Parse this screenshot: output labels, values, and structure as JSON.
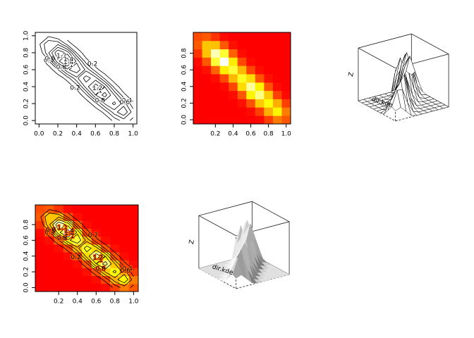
{
  "kde": {
    "x": [
      0,
      0.1,
      0.2,
      0.3,
      0.4,
      0.5,
      0.6,
      0.7,
      0.8,
      0.9,
      1
    ],
    "y": [
      0,
      0.1,
      0.2,
      0.3,
      0.4,
      0.5,
      0.6,
      0.7,
      0.8,
      0.9,
      1
    ],
    "z": [
      [
        0,
        0,
        0,
        0,
        0,
        0,
        0,
        0.04,
        0.25,
        0.5,
        0.35
      ],
      [
        0,
        0,
        0,
        0,
        0,
        0,
        0.05,
        0.26,
        0.71,
        1.0,
        0.5
      ],
      [
        0,
        0,
        0,
        0,
        0,
        0.06,
        0.33,
        0.82,
        1.05,
        0.71,
        0.25
      ],
      [
        0,
        0,
        0,
        0,
        0.05,
        0.34,
        0.99,
        1.3,
        0.82,
        0.26,
        0.04
      ],
      [
        0,
        0,
        0,
        0.04,
        0.28,
        0.89,
        1.35,
        0.99,
        0.33,
        0.05,
        0
      ],
      [
        0,
        0,
        0.05,
        0.29,
        0.75,
        1.1,
        0.89,
        0.34,
        0.06,
        0,
        0
      ],
      [
        0,
        0.06,
        0.39,
        0.96,
        1.15,
        0.75,
        0.28,
        0.05,
        0,
        0,
        0
      ],
      [
        0.04,
        0.35,
        1.14,
        1.55,
        0.96,
        0.29,
        0.04,
        0,
        0,
        0,
        0
      ],
      [
        0.2,
        0.78,
        1.4,
        1.14,
        0.39,
        0.05,
        0,
        0,
        0,
        0,
        0
      ],
      [
        0.36,
        0.8,
        0.78,
        0.35,
        0.06,
        0,
        0,
        0,
        0,
        0,
        0
      ],
      [
        0.3,
        0.36,
        0.2,
        0.04,
        0,
        0,
        0,
        0,
        0,
        0,
        0
      ]
    ],
    "levels": [
      0.2,
      0.4,
      0.6,
      0.8,
      1,
      1.2,
      1.4
    ]
  },
  "chart_data": [
    {
      "type": "contour",
      "xlim": [
        -0.04,
        1.04
      ],
      "ylim": [
        -0.04,
        1.04
      ],
      "xticks": [
        {
          "value": 0,
          "label": "0.0"
        },
        0.2,
        0.4,
        0.6,
        0.8,
        {
          "value": 1,
          "label": "1.0"
        }
      ],
      "yticks": [
        {
          "value": 0,
          "label": "0.0"
        },
        0.2,
        0.4,
        0.6,
        0.8,
        {
          "value": 1,
          "label": "1.0"
        }
      ]
    },
    {
      "type": "image",
      "contour": false,
      "palette": [
        "#ff0000",
        "#ff8000",
        "#ffff00",
        "#ffffff"
      ],
      "xlim": [
        -0.05,
        1.05
      ],
      "ylim": [
        -0.05,
        1.05
      ],
      "xticks": [
        0.2,
        0.4,
        0.6,
        0.8,
        {
          "value": 1,
          "label": "1.0"
        }
      ],
      "yticks": [
        {
          "value": 0,
          "label": "0.0"
        },
        0.2,
        0.4,
        0.6,
        0.8
      ]
    },
    {
      "type": "persp",
      "shade": false,
      "xlab": "dir.kde",
      "zlab": "Z"
    },
    {
      "type": "image",
      "contour": true,
      "palette": [
        "#ff0000",
        "#ff8000",
        "#ffff00",
        "#ffffff"
      ],
      "xlim": [
        -0.05,
        1.05
      ],
      "ylim": [
        -0.05,
        1.05
      ],
      "xticks": [
        0.2,
        0.4,
        0.6,
        0.8,
        {
          "value": 1,
          "label": "1.0"
        }
      ],
      "yticks": [
        {
          "value": 0,
          "label": "0.0"
        },
        0.2,
        0.4,
        0.6,
        0.8
      ]
    },
    {
      "type": "persp",
      "shade": true,
      "xlab": "dir.kde",
      "zlab": "Z"
    }
  ]
}
